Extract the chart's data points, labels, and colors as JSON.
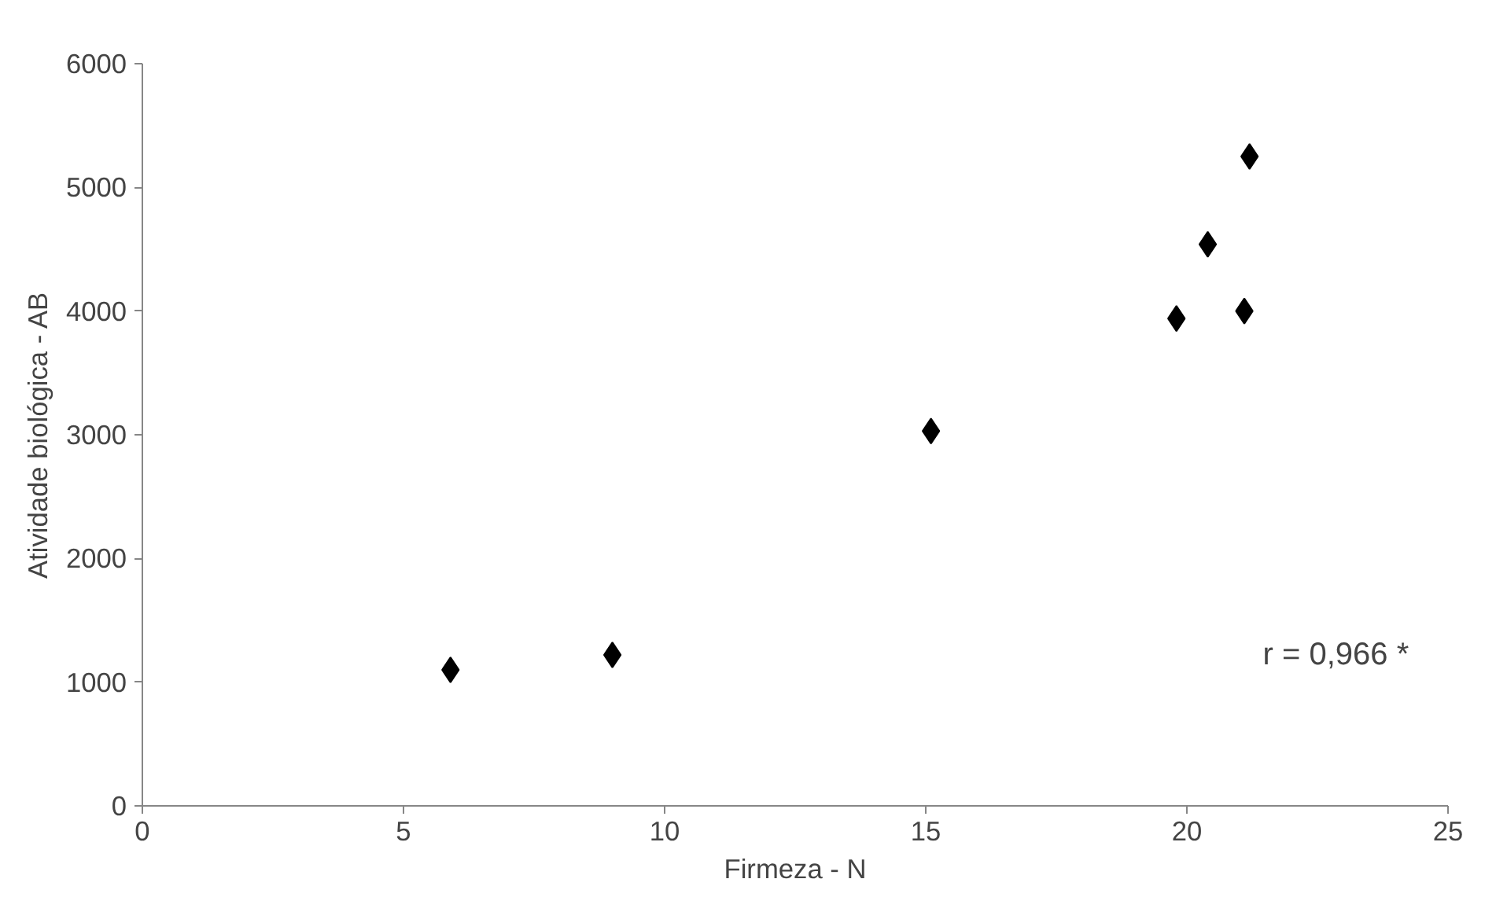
{
  "chart_data": {
    "type": "scatter",
    "xlabel": "Firmeza - N",
    "ylabel": "Atividade biológica - AB",
    "x": [
      5.9,
      9.0,
      15.1,
      19.8,
      20.4,
      21.1,
      21.2
    ],
    "values": [
      1100,
      1220,
      3030,
      3940,
      4540,
      4000,
      5250
    ],
    "color": "#000000",
    "marker": "diamond",
    "xlim": [
      0,
      25
    ],
    "xticks": [
      0,
      5,
      10,
      15,
      20,
      25
    ],
    "ylim": [
      0,
      6000
    ],
    "yticks": [
      0,
      1000,
      2000,
      3000,
      4000,
      5000,
      6000
    ],
    "grid": false,
    "annotations": [
      "r = 0,966 *"
    ]
  }
}
